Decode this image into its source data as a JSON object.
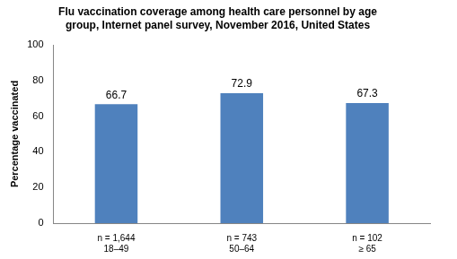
{
  "chart_data": {
    "type": "bar",
    "title": "Flu vaccination coverage among health care personnel by age group, Internet panel survey, November 2016, United States",
    "y_label": "Percentage vaccinated",
    "categories": [
      [
        "n = 1,644",
        "18–49"
      ],
      [
        "n = 743",
        "50–64"
      ],
      [
        "n = 102",
        "≥ 65"
      ]
    ],
    "values": [
      66.7,
      72.9,
      67.3
    ],
    "color": "#4f81bd",
    "ylim": [
      0,
      100
    ],
    "yticks": [
      0,
      20,
      40,
      60,
      80,
      100
    ],
    "grid": false,
    "data_labels": true
  }
}
